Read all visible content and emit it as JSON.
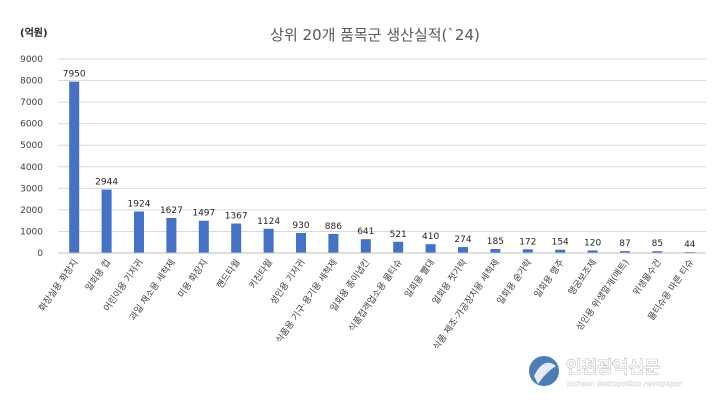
{
  "chart_data": {
    "type": "bar",
    "title": "상위 20개 품목군 생산실적(`24)",
    "unit_label": "(억원)",
    "ylim": [
      0,
      9000
    ],
    "yticks": [
      0,
      1000,
      2000,
      3000,
      4000,
      5000,
      6000,
      7000,
      8000,
      9000
    ],
    "grid": true,
    "legend": "none",
    "bar_color": "#4472C4",
    "categories": [
      "화장실용 화장지",
      "일회용 컵",
      "어린이용 기저귀",
      "과일 채소용 세척제",
      "미용 화장지",
      "핸드타월",
      "키친타월",
      "성인용 기저귀",
      "식품용 기구·용기용 세척제",
      "일회용 종이냅킨",
      "식품접객업소용 물티슈",
      "일회용 빨대",
      "일회용 젓가락",
      "식품 제조·가공장치용 세척제",
      "일회용 숟가락",
      "일회용 행주",
      "행굼보조제",
      "성인용 위생깔개(매트)",
      "위생물수건",
      "물티슈용 마른 티슈"
    ],
    "values": [
      7950,
      2944,
      1924,
      1627,
      1497,
      1367,
      1124,
      930,
      886,
      641,
      521,
      410,
      274,
      185,
      172,
      154,
      120,
      87,
      85,
      44
    ]
  },
  "watermark": {
    "name": "인천광역신문",
    "sub": "Incheon Metropolitan newspaper"
  }
}
